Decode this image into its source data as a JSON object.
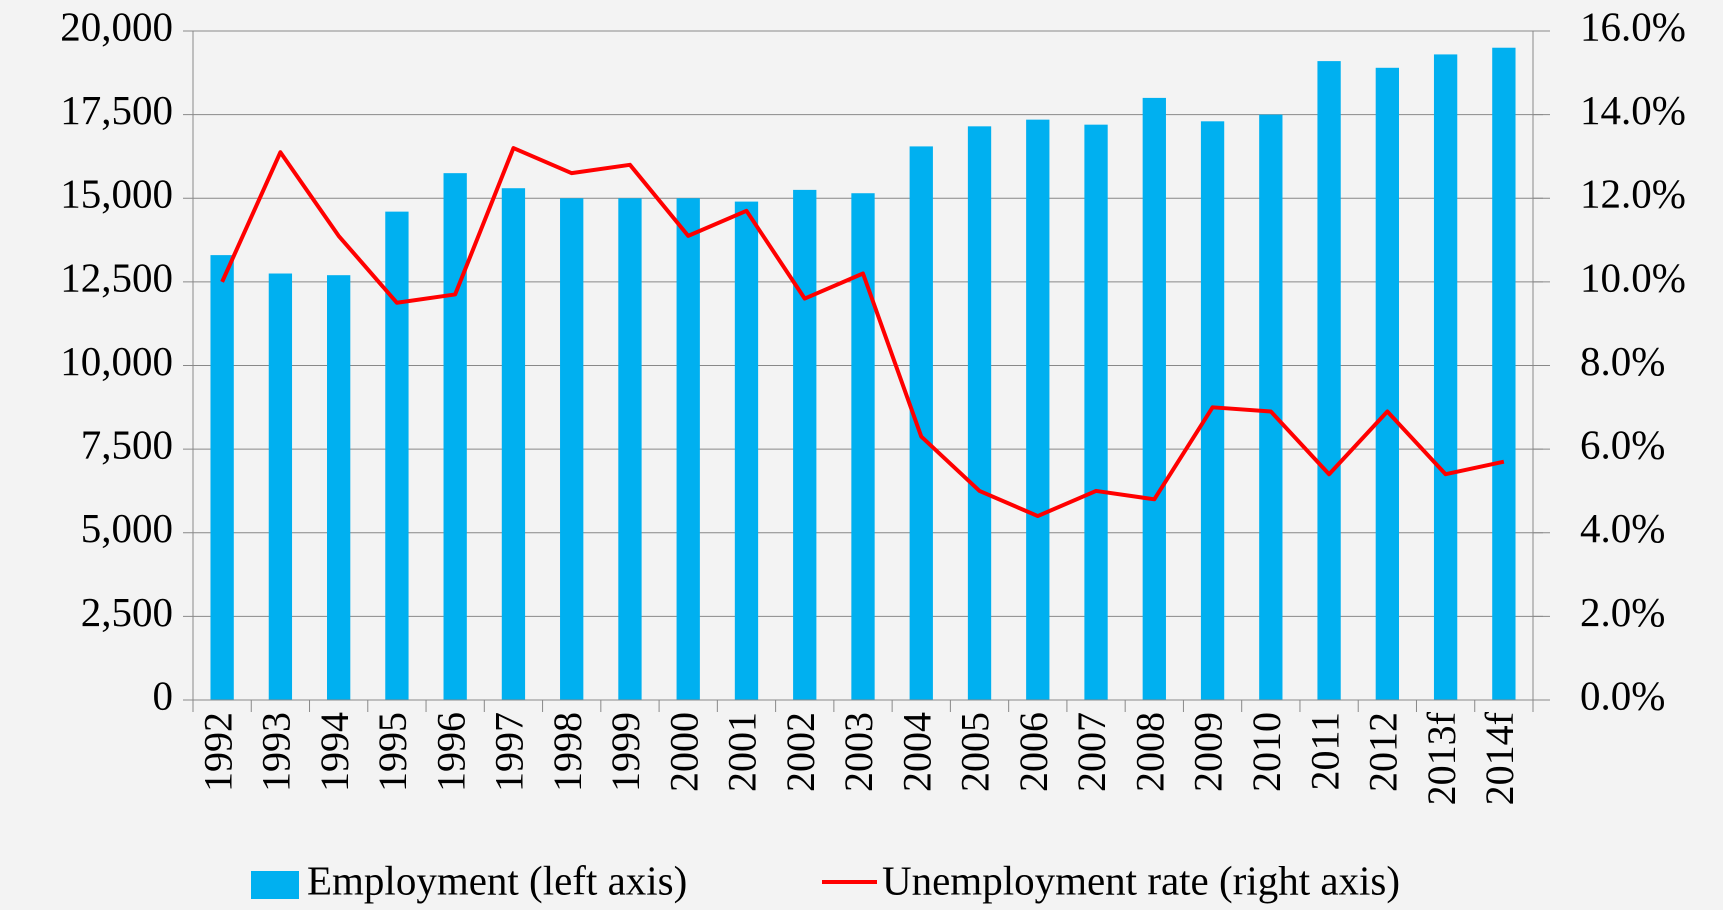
{
  "chart_data": {
    "type": "bar_line",
    "categories": [
      "1992",
      "1993",
      "1994",
      "1995",
      "1996",
      "1997",
      "1998",
      "1999",
      "2000",
      "2001",
      "2002",
      "2003",
      "2004",
      "2005",
      "2006",
      "2007",
      "2008",
      "2009",
      "2010",
      "2011",
      "2012",
      "2013f",
      "2014f"
    ],
    "series": [
      {
        "name": "Employment (left axis)",
        "color": "#00b0f0",
        "type": "bar",
        "values": [
          13300,
          12750,
          12700,
          14600,
          15750,
          15300,
          15000,
          15000,
          15000,
          14900,
          15250,
          15150,
          16550,
          17150,
          17350,
          17200,
          18000,
          17300,
          17500,
          19100,
          18900,
          19300,
          19500
        ]
      },
      {
        "name": "Unemployment rate (right axis)",
        "color": "#ff0000",
        "type": "line",
        "axis": "y2",
        "values": [
          10.0,
          13.1,
          11.1,
          9.5,
          9.7,
          13.2,
          12.6,
          12.8,
          11.1,
          11.7,
          9.6,
          10.2,
          6.3,
          5.0,
          4.4,
          5.0,
          4.8,
          7.0,
          6.9,
          5.4,
          6.9,
          5.4,
          5.7
        ]
      }
    ],
    "ylim": [
      0,
      20000
    ],
    "yticks": [
      {
        "value": 0,
        "label": "0"
      },
      {
        "value": 2500,
        "label": "2,500"
      },
      {
        "value": 5000,
        "label": "5,000"
      },
      {
        "value": 7500,
        "label": "7,500"
      },
      {
        "value": 10000,
        "label": "10,000"
      },
      {
        "value": 12500,
        "label": "12,500"
      },
      {
        "value": 15000,
        "label": "15,000"
      },
      {
        "value": 17500,
        "label": "17,500"
      },
      {
        "value": 20000,
        "label": "20,000"
      }
    ],
    "y2lim": [
      0,
      16
    ],
    "y2ticks": [
      {
        "value": 0,
        "label": "0.0%"
      },
      {
        "value": 2,
        "label": "2.0%"
      },
      {
        "value": 4,
        "label": "4.0%"
      },
      {
        "value": 6,
        "label": "6.0%"
      },
      {
        "value": 8,
        "label": "8.0%"
      },
      {
        "value": 10,
        "label": "10.0%"
      },
      {
        "value": 12,
        "label": "12.0%"
      },
      {
        "value": 14,
        "label": "14.0%"
      },
      {
        "value": 16,
        "label": "16.0%"
      }
    ],
    "grid": true,
    "legend": "bottom"
  }
}
